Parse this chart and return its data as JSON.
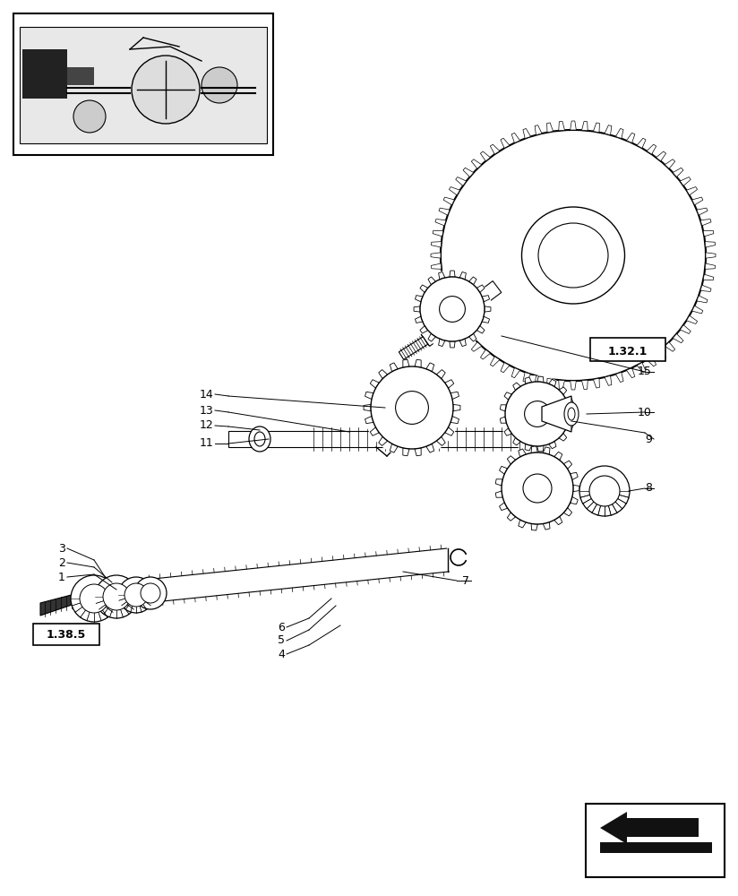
{
  "bg_color": "#ffffff",
  "line_color": "#000000",
  "fig_width": 8.24,
  "fig_height": 10.0,
  "dpi": 100
}
